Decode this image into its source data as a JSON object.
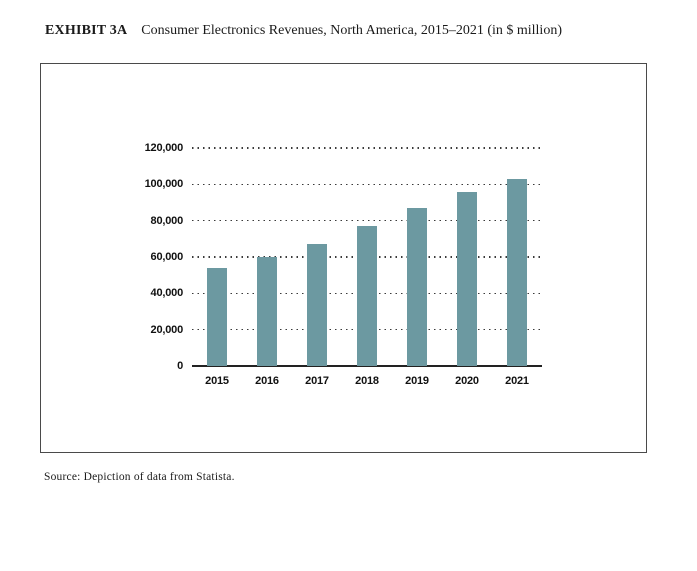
{
  "page": {
    "exhibit_label": "EXHIBIT 3A",
    "title": "Consumer Electronics Revenues, North America, 2015–2021 (in $ million)",
    "source": "Source: Depiction of data from Statista."
  },
  "colors": {
    "bar": "#6c99a1",
    "axis": "#222222",
    "gridline": "#3a3a3a",
    "frame_border": "#4a4a4a",
    "text": "#1a1a1a"
  },
  "chart_data": {
    "type": "bar",
    "categories": [
      "2015",
      "2016",
      "2017",
      "2018",
      "2019",
      "2020",
      "2021"
    ],
    "values": [
      54000,
      60000,
      67000,
      77000,
      87000,
      96000,
      103000
    ],
    "title": "Consumer Electronics Revenues, North America, 2015–2021 (in $ million)",
    "xlabel": "",
    "ylabel": "",
    "ylim": [
      0,
      120000
    ],
    "ytick_interval": 20000,
    "ytick_labels": [
      "0",
      "20,000",
      "40,000",
      "60,000",
      "80,000",
      "100,000",
      "120,000"
    ],
    "grid": "horizontal-dotted",
    "legend": "none",
    "bar_color": "#6c99a1"
  }
}
